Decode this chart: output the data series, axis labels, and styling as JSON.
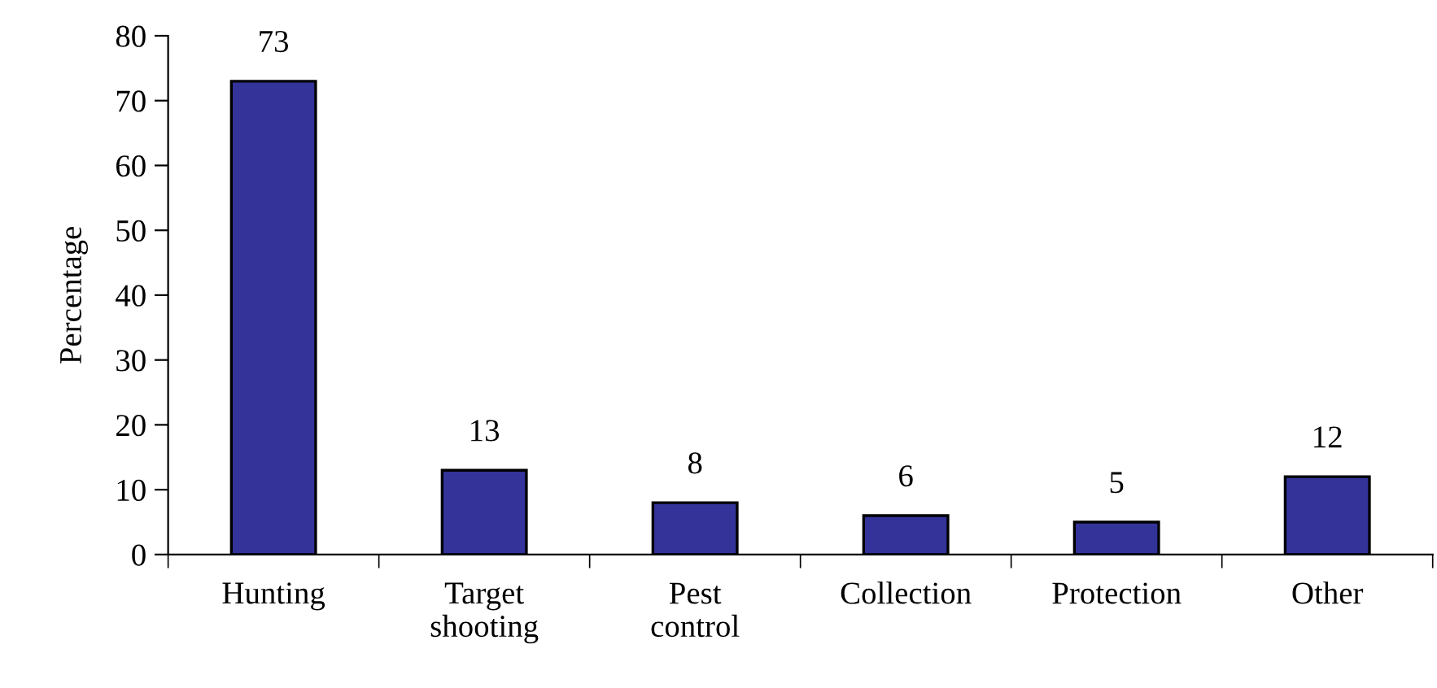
{
  "chart_data": {
    "type": "bar",
    "categories": [
      "Hunting",
      "Target\nshooting",
      "Pest\ncontrol",
      "Collection",
      "Protection",
      "Other"
    ],
    "values": [
      73,
      13,
      8,
      6,
      5,
      12
    ],
    "color": "#333399",
    "ylabel": "Percentage",
    "ylim": [
      0,
      80
    ],
    "yticks": [
      0,
      10,
      20,
      30,
      40,
      50,
      60,
      70,
      80
    ],
    "data_labels": true,
    "grid": false
  }
}
